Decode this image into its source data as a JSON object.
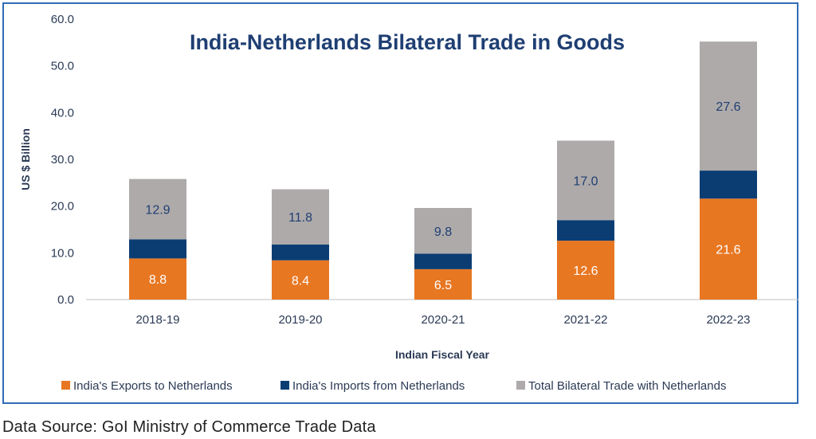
{
  "chart_data": {
    "type": "bar",
    "stacked": true,
    "title": "India-Netherlands Bilateral Trade in Goods",
    "xlabel": "Indian Fiscal Year",
    "ylabel": "US $ Billion",
    "ylim": [
      0,
      60
    ],
    "yticks": [
      "0.0",
      "10.0",
      "20.0",
      "30.0",
      "40.0",
      "50.0",
      "60.0"
    ],
    "categories": [
      "2018-19",
      "2019-20",
      "2020-21",
      "2021-22",
      "2022-23"
    ],
    "series": [
      {
        "name": "India's Exports to Netherlands",
        "color": "#e87722",
        "values": [
          8.8,
          8.4,
          6.5,
          12.6,
          21.6
        ],
        "labels": [
          "8.8",
          "8.4",
          "6.5",
          "12.6",
          "21.6"
        ],
        "label_color": "#ffffff"
      },
      {
        "name": "India's Imports from Netherlands",
        "color": "#0b3d73",
        "values": [
          4.1,
          3.4,
          3.3,
          4.4,
          6.0
        ],
        "labels": [
          "",
          "",
          "",
          "",
          ""
        ],
        "label_color": "#ffffff"
      },
      {
        "name": "Total Bilateral Trade with Netherlands",
        "color": "#aeaaaa",
        "values": [
          12.9,
          11.8,
          9.8,
          17.0,
          27.6
        ],
        "labels": [
          "12.9",
          "11.8",
          "9.8",
          "17.0",
          "27.6"
        ],
        "label_color": "#1f3f73"
      }
    ],
    "grid": false,
    "legend_position": "bottom"
  },
  "footer": {
    "source": "Data Source: GoI Ministry of Commerce Trade Data"
  }
}
